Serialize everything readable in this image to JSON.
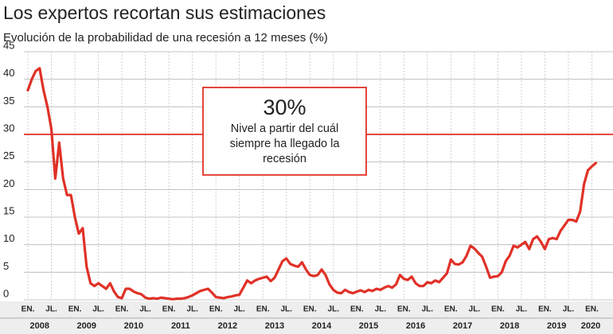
{
  "chart_data": {
    "type": "line",
    "title": "Los expertos recortan sus estimaciones",
    "subtitle": "Evolución de la probabilidad de una recesión a 12 meses (%)",
    "categories": [
      "EN.",
      null,
      null,
      null,
      null,
      null,
      "JL.",
      null,
      null,
      null,
      null,
      null,
      "EN.",
      null,
      null,
      null,
      null,
      null,
      "JL.",
      null,
      null,
      null,
      null,
      null,
      "EN.",
      null,
      null,
      null,
      null,
      null,
      "JL.",
      null,
      null,
      null,
      null,
      null,
      "EN.",
      null,
      null,
      null,
      null,
      null,
      "JL.",
      null,
      null,
      null,
      null,
      null,
      "EN.",
      null,
      null,
      null,
      null,
      null,
      "JL.",
      null,
      null,
      null,
      null,
      null,
      "EN.",
      null,
      null,
      null,
      null,
      null,
      "JL.",
      null,
      null,
      null,
      null,
      null,
      "EN.",
      null,
      null,
      null,
      null,
      null,
      "JL.",
      null,
      null,
      null,
      null,
      null,
      "EN.",
      null,
      null,
      null,
      null,
      null,
      "JL.",
      null,
      null,
      null,
      null,
      null,
      "EN.",
      null,
      null,
      null,
      null,
      null,
      "JL.",
      null,
      null,
      null,
      null,
      null,
      "EN.",
      null,
      null,
      null,
      null,
      null,
      "JL.",
      null,
      null,
      null,
      null,
      null,
      "EN.",
      null,
      null,
      null,
      null,
      null,
      "JL.",
      null,
      null,
      null,
      null,
      null,
      "EN.",
      null,
      null,
      null,
      null,
      null,
      "JL.",
      null,
      null,
      null,
      null,
      null,
      "EN.",
      null
    ],
    "years": [
      "2008",
      "2009",
      "2010",
      "2011",
      "2012",
      "2013",
      "2014",
      "2015",
      "2016",
      "2017",
      "2018",
      "2019",
      "2020"
    ],
    "series": [
      {
        "color": "#e03127",
        "values": [
          38,
          40,
          41.5,
          42,
          38,
          35,
          31,
          22,
          28.5,
          22,
          19,
          19,
          15,
          12,
          13,
          6,
          3,
          2.5,
          3,
          2.5,
          2,
          3,
          1.5,
          0.5,
          0.3,
          2,
          2,
          1.5,
          1.2,
          1,
          0.4,
          0.2,
          0.3,
          0.2,
          0.4,
          0.3,
          0.2,
          0.1,
          0.2,
          0.2,
          0.3,
          0.5,
          0.8,
          1.2,
          1.6,
          1.8,
          2,
          1.3,
          0.5,
          0.4,
          0.3,
          0.5,
          0.6,
          0.8,
          0.9,
          2.2,
          3.5,
          3,
          3.5,
          3.8,
          4,
          4.2,
          3.4,
          4,
          5.5,
          7,
          7.5,
          6.5,
          6.2,
          6,
          6.8,
          5.5,
          4.5,
          4.3,
          4.5,
          5.5,
          4.5,
          2.8,
          1.8,
          1.3,
          1.2,
          1.8,
          1.4,
          1.2,
          1.5,
          1.7,
          1.4,
          1.8,
          1.6,
          2,
          1.8,
          2.2,
          2.5,
          2.2,
          2.8,
          4.5,
          3.8,
          3.6,
          4.2,
          3,
          2.5,
          2.5,
          3.2,
          3,
          3.5,
          3.2,
          4,
          4.8,
          7.3,
          6.5,
          6.4,
          6.8,
          8,
          9.8,
          9.3,
          8.5,
          7.8,
          6,
          4,
          4.2,
          4.3,
          5,
          7,
          8,
          9.8,
          9.5,
          10,
          10.5,
          9.2,
          11,
          11.5,
          10.5,
          9.2,
          11,
          11.2,
          11,
          12.5,
          13.5,
          14.5,
          14.5,
          14.2,
          16,
          21,
          23.5,
          24.2,
          24.8
        ]
      }
    ],
    "ylim": [
      0,
      45
    ],
    "yticks": [
      0,
      5,
      10,
      15,
      20,
      25,
      30,
      35,
      40,
      45
    ],
    "grid": true,
    "reference_line": {
      "value": 30,
      "color": "#e03127"
    },
    "annotation": {
      "title": "30%",
      "lines": [
        "Nivel a partir del cuál",
        "siempre ha llegado la",
        "recesión"
      ]
    }
  }
}
